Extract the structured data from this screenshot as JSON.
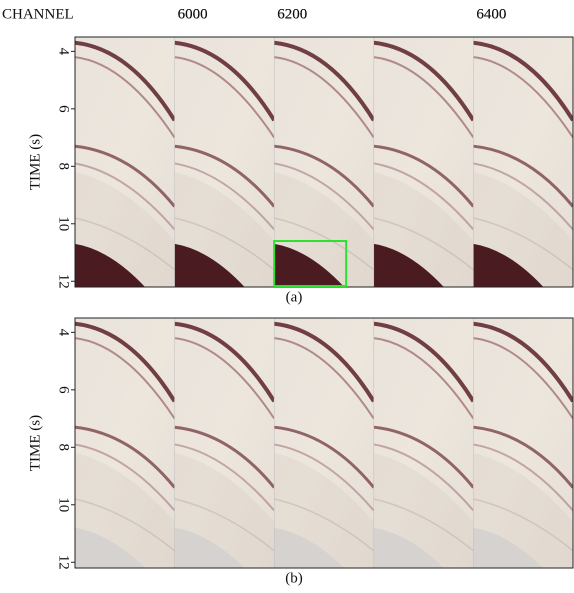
{
  "chart_data": [
    {
      "type": "seismic",
      "title": "(a)",
      "x_label": "CHANNEL",
      "y_label": "TIME (s)",
      "categories": [
        null,
        "6000",
        "6200",
        null,
        "6400"
      ],
      "ylim": [
        3.5,
        12.2
      ],
      "yticks": [
        4,
        6,
        8,
        10,
        12
      ]
    },
    {
      "type": "seismic",
      "title": "(b)",
      "y_label": "TIME (s)",
      "categories": [
        null,
        "6000",
        "6200",
        null,
        "6400"
      ],
      "ylim": [
        3.5,
        12.2
      ],
      "yticks": [
        4,
        6,
        8,
        10,
        12
      ]
    }
  ]
}
